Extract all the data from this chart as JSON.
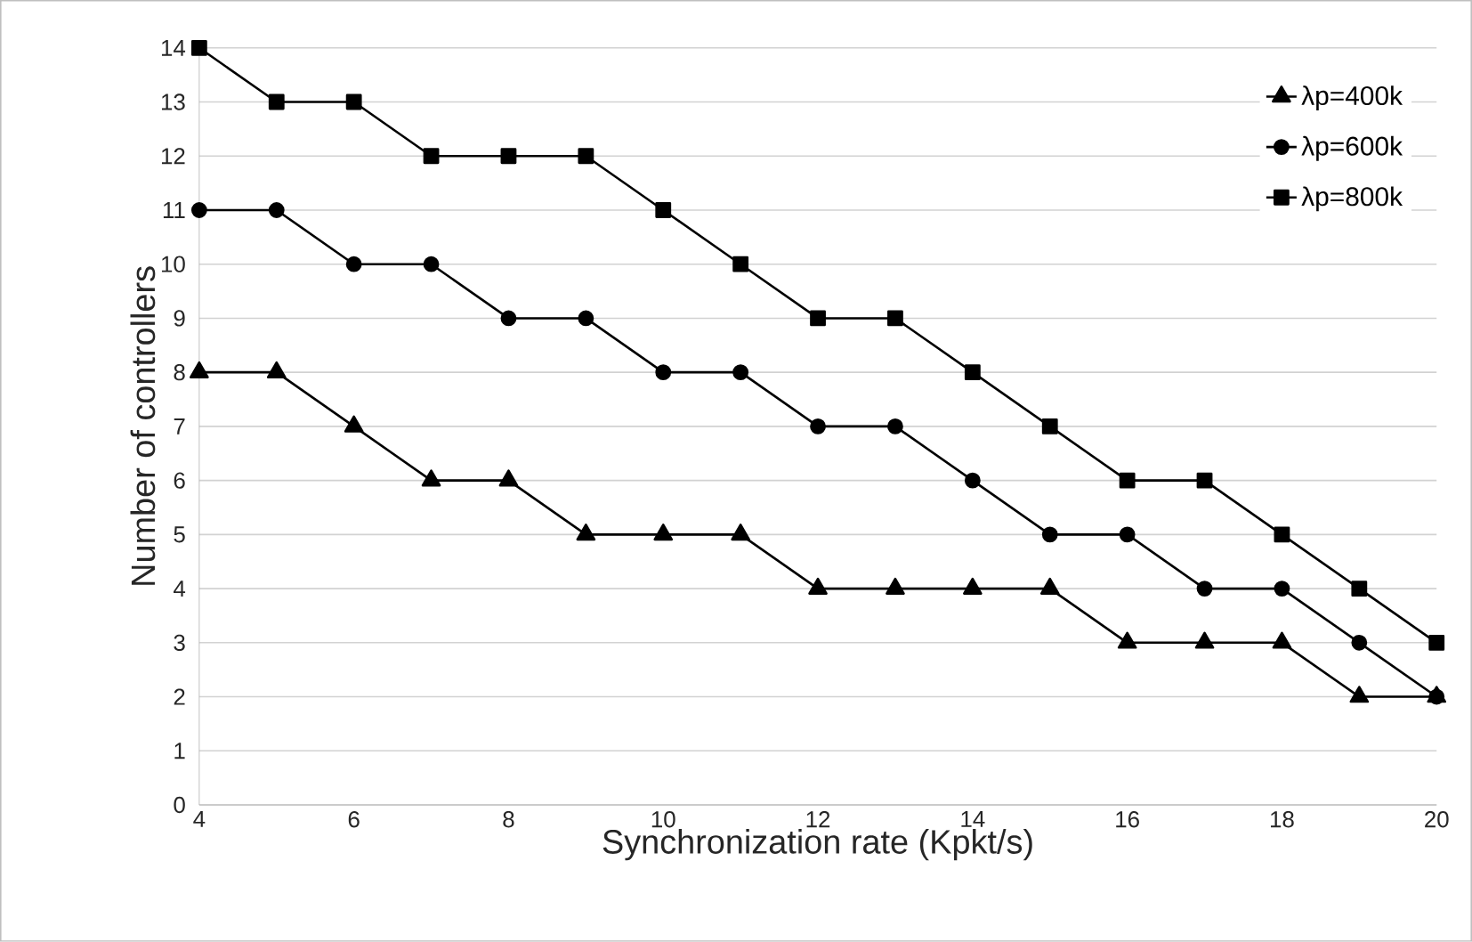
{
  "chart_data": {
    "type": "line",
    "xlabel": "Synchronization rate (Kpkt/s)",
    "ylabel": "Number of controllers",
    "x": [
      4,
      5,
      6,
      7,
      8,
      9,
      10,
      11,
      12,
      13,
      14,
      15,
      16,
      17,
      18,
      19,
      20
    ],
    "series": [
      {
        "name": "λp=400k",
        "color": "#000000",
        "marker": "triangle",
        "values": [
          8,
          8,
          7,
          6,
          6,
          5,
          5,
          5,
          4,
          4,
          4,
          4,
          3,
          3,
          3,
          2,
          2
        ]
      },
      {
        "name": "λp=600k",
        "color": "#000000",
        "marker": "circle",
        "values": [
          11,
          11,
          10,
          10,
          9,
          9,
          8,
          8,
          7,
          7,
          6,
          5,
          5,
          4,
          4,
          3,
          2
        ]
      },
      {
        "name": "λp=800k",
        "color": "#000000",
        "marker": "square",
        "values": [
          14,
          13,
          13,
          12,
          12,
          12,
          11,
          10,
          9,
          9,
          8,
          7,
          6,
          6,
          5,
          4,
          3
        ]
      }
    ],
    "xlim": [
      4,
      20
    ],
    "xticks": [
      4,
      6,
      8,
      10,
      12,
      14,
      16,
      18,
      20
    ],
    "ylim": [
      0,
      14
    ],
    "yticks": [
      0,
      1,
      2,
      3,
      4,
      5,
      6,
      7,
      8,
      9,
      10,
      11,
      12,
      13,
      14
    ],
    "grid": "y",
    "legend": "top right",
    "line_style": "solid"
  }
}
